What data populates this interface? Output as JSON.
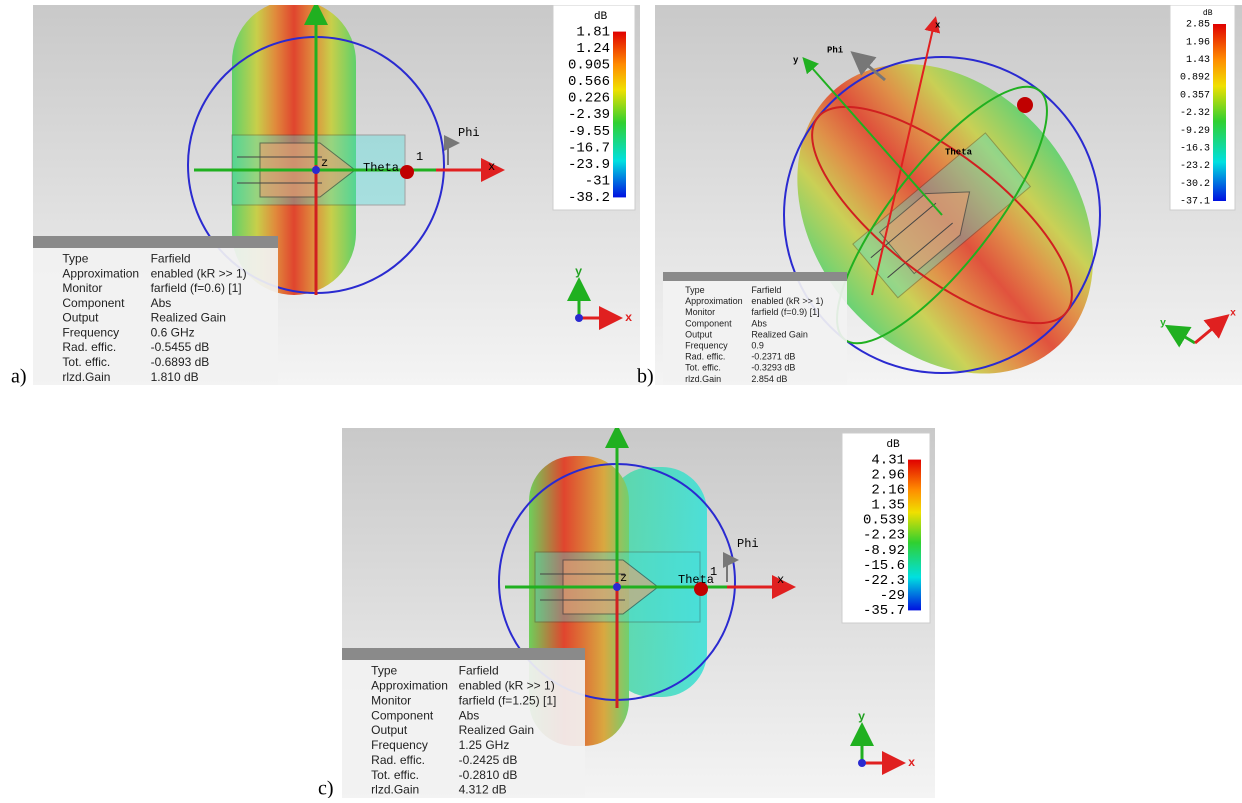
{
  "panels": [
    {
      "label": "a)",
      "colorbar": {
        "unit": "dB",
        "ticks": [
          "1.81",
          "1.24",
          "0.905",
          "0.566",
          "0.226",
          "-2.39",
          "-9.55",
          "-16.7",
          "-23.9",
          "-31",
          "-38.2"
        ]
      },
      "info": [
        [
          "Type",
          "Farfield"
        ],
        [
          "Approximation",
          "enabled (kR >> 1)"
        ],
        [
          "Monitor",
          "farfield (f=0.6) [1]"
        ],
        [
          "Component",
          "Abs"
        ],
        [
          "Output",
          "Realized Gain"
        ],
        [
          "Frequency",
          "0.6 GHz"
        ],
        [
          "Rad. effic.",
          "-0.5455 dB"
        ],
        [
          "Tot. effic.",
          "-0.6893 dB"
        ],
        [
          "rlzd.Gain",
          "1.810 dB"
        ]
      ],
      "axes": {
        "phi": "Phi",
        "theta": "Theta",
        "x": "x",
        "z": "z",
        "port": "1",
        "triad_y": "y",
        "triad_x": "x"
      }
    },
    {
      "label": "b)",
      "colorbar": {
        "unit": "dB",
        "ticks": [
          "2.85",
          "1.96",
          "1.43",
          "0.892",
          "0.357",
          "-2.32",
          "-9.29",
          "-16.3",
          "-23.2",
          "-30.2",
          "-37.1"
        ]
      },
      "info": [
        [
          "Type",
          "Farfield"
        ],
        [
          "Approximation",
          "enabled (kR >> 1)"
        ],
        [
          "Monitor",
          "farfield (f=0.9) [1]"
        ],
        [
          "Component",
          "Abs"
        ],
        [
          "Output",
          "Realized Gain"
        ],
        [
          "Frequency",
          "0.9"
        ],
        [
          "Rad. effic.",
          "-0.2371 dB"
        ],
        [
          "Tot. effic.",
          "-0.3293 dB"
        ],
        [
          "rlzd.Gain",
          "2.854 dB"
        ]
      ],
      "axes": {
        "phi": "Phi",
        "theta": "Theta",
        "x": "x",
        "y": "y",
        "triad_y": "y",
        "triad_x": "x"
      }
    },
    {
      "label": "c)",
      "colorbar": {
        "unit": "dB",
        "ticks": [
          "4.31",
          "2.96",
          "2.16",
          "1.35",
          "0.539",
          "-2.23",
          "-8.92",
          "-15.6",
          "-22.3",
          "-29",
          "-35.7"
        ]
      },
      "info": [
        [
          "Type",
          "Farfield"
        ],
        [
          "Approximation",
          "enabled (kR >> 1)"
        ],
        [
          "Monitor",
          "farfield (f=1.25) [1]"
        ],
        [
          "Component",
          "Abs"
        ],
        [
          "Output",
          "Realized Gain"
        ],
        [
          "Frequency",
          "1.25 GHz"
        ],
        [
          "Rad. effic.",
          "-0.2425 dB"
        ],
        [
          "Tot. effic.",
          "-0.2810 dB"
        ],
        [
          "rlzd.Gain",
          "4.312 dB"
        ]
      ],
      "axes": {
        "phi": "Phi",
        "theta": "Theta",
        "x": "x",
        "z": "z",
        "port": "1",
        "triad_y": "y",
        "triad_x": "x"
      }
    }
  ]
}
